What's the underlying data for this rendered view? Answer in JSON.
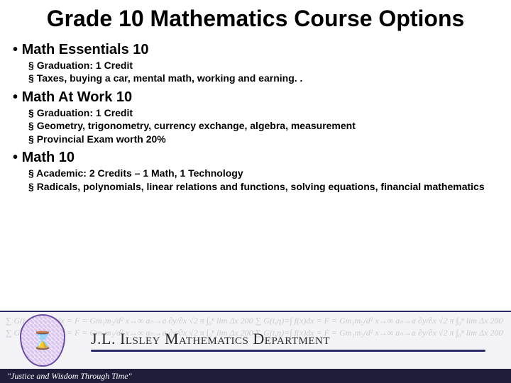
{
  "title_fontsize": 32,
  "title": "Grade 10 Mathematics Course Options",
  "lvl1_fontsize": 20,
  "lvl2_fontsize": 14,
  "sections": [
    {
      "heading": "Math Essentials 10",
      "items": [
        "Graduation: 1 Credit",
        "Taxes, buying a car, mental math, working and earning. ."
      ]
    },
    {
      "heading": "Math At Work 10",
      "items": [
        "Graduation: 1 Credit",
        "Geometry, trigonometry, currency exchange, algebra, measurement",
        "Provincial Exam worth 20%"
      ]
    },
    {
      "heading": "Math 10",
      "items": [
        "Academic: 2 Credits – 1 Math, 1 Technology",
        "Radicals, polynomials, linear relations and functions, solving equations, financial mathematics"
      ]
    }
  ],
  "footer": {
    "banner_height": 82,
    "banner_bg": "#f3f3f5",
    "banner_border": "#2b2966",
    "formula_color": "#c9c9d2",
    "formula_fontsize": 12,
    "crest": {
      "width": 64,
      "height": 74,
      "border_color": "#6a4da0",
      "fill_a": "#efe3f7",
      "fill_b": "#d9c6ef",
      "glyph": "⌛",
      "glyph_color": "#b98f00"
    },
    "dept_name": "J.L. Ilsley Mathematics Department",
    "dept_fontsize": 22,
    "dept_color": "#2a2a2a",
    "rule_color": "#2b2966",
    "motto": "\"Justice and Wisdom Through Time\"",
    "motto_bar_bg": "#1f1d3a",
    "motto_color": "#ffffff",
    "motto_fontsize": 12,
    "motto_bar_height": 20,
    "math_bg_text": "∑ G(t,η)=∫ f(x)dx = F = Gm₁m₂/d²   x→∞   aₙ→a   ∂y/∂x   √2  π  ∫₀ⁿ  lim  Δx  200"
  }
}
